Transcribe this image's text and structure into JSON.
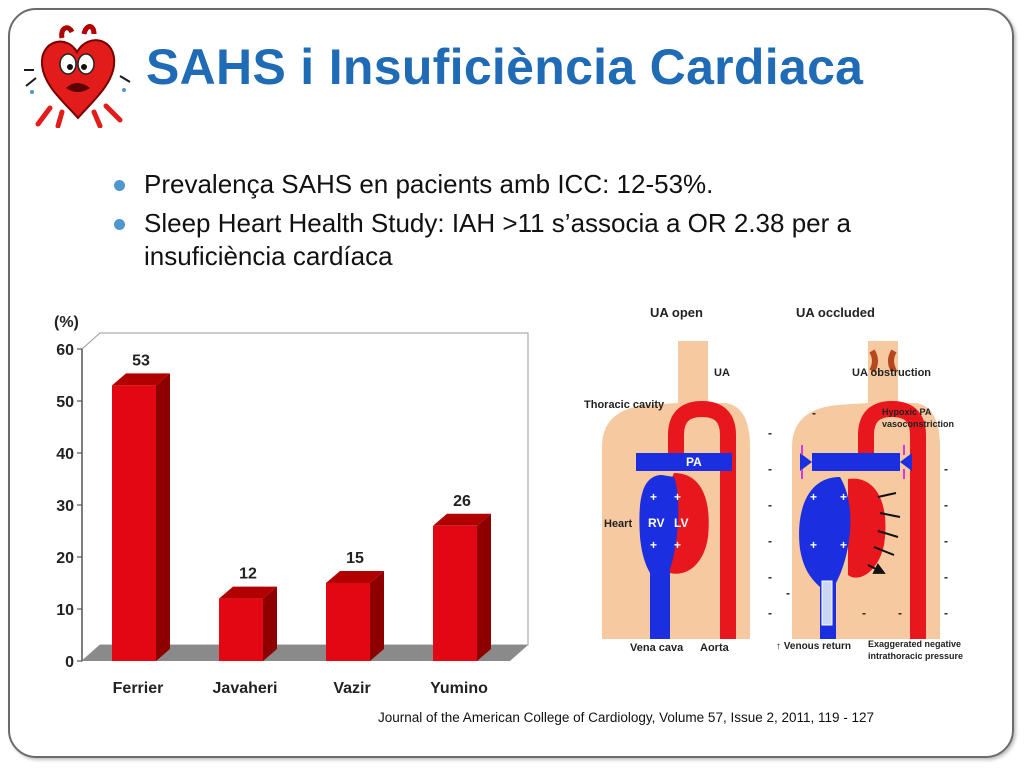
{
  "slide": {
    "title": "SAHS i Insuficiència Cardiaca",
    "bullets": [
      "Prevalença SAHS en pacients amb ICC: 12-53%.",
      "Sleep Heart Health Study: IAH >11 s’associa a OR 2.38 per a insuficiència cardíaca"
    ],
    "citation": "Journal of the American College of Cardiology, Volume 57, Issue 2, 2011, 119 - 127"
  },
  "colors": {
    "title": "#1f6bb5",
    "bar": "#e30613",
    "bullet": "#4f97cc"
  },
  "chart_data": {
    "type": "bar",
    "categories": [
      "Ferrier",
      "Javaheri",
      "Vazir",
      "Yumino"
    ],
    "values": [
      53,
      12,
      15,
      26
    ],
    "data_labels": [
      "53",
      "12",
      "15",
      "26"
    ],
    "ylabel": "(%)",
    "ylim": [
      0,
      60
    ],
    "yticks": [
      "0",
      "10",
      "20",
      "30",
      "40",
      "50",
      "60"
    ],
    "grid": false,
    "legend": "none"
  },
  "diagram": {
    "left_title": "UA open",
    "right_title": "UA occluded",
    "ua": "UA",
    "ua_obstruction": "UA obstruction",
    "thoracic_cavity": "Thoracic cavity",
    "hypoxic": [
      "Hypoxic PA",
      "vasoconstriction"
    ],
    "pa": "PA",
    "rv": "RV",
    "lv": "LV",
    "heart": "Heart",
    "vena_cava": "Vena cava",
    "aorta": "Aorta",
    "venous_return": "↑ Venous return",
    "exaggerated": [
      "Exaggerated negative",
      "intrathoracic pressure"
    ],
    "plus": "+",
    "minus": "-"
  }
}
